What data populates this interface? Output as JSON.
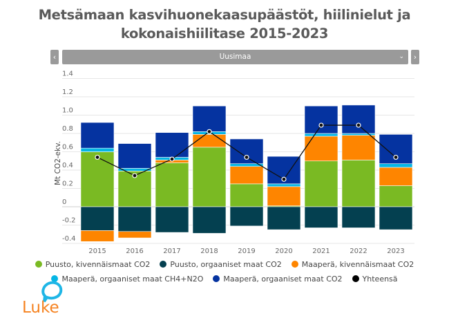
{
  "header": {
    "title_line1": "Metsämaan kasvihuonekaasupäästöt, hiilinielut ja",
    "title_line2": "kokonaishiilitase 2015-2023"
  },
  "selector": {
    "prev_label": "‹",
    "next_label": "›",
    "selected": "Uusimaa",
    "chevron": "⌄"
  },
  "logo": {
    "text": "Luke"
  },
  "colors": {
    "puusto_kiv": "#7aba23",
    "puusto_org": "#044050",
    "maapera_kiv": "#fe8500",
    "maapera_org_ch4": "#05b6e5",
    "maapera_org_co2": "#0533a0",
    "yhteensa": "#000000",
    "logo_orange": "#f58220",
    "logo_blue": "#1fb6e6"
  },
  "chart_data": {
    "type": "bar",
    "stacked": true,
    "title": "Metsämaan kasvihuonekaasupäästöt, hiilinielut ja kokonaishiilitase 2015-2023",
    "xlabel": "",
    "ylabel": "Mt CO2-ekv.",
    "ylim": [
      -0.4,
      1.4
    ],
    "yticks": [
      "-0.4",
      "-0.2",
      "0",
      "0.2",
      "0.4",
      "0.6",
      "0.8",
      "1.0",
      "1.2",
      "1.4"
    ],
    "ytick_values": [
      -0.4,
      -0.2,
      0,
      0.2,
      0.4,
      0.6,
      0.8,
      1.0,
      1.2,
      1.4
    ],
    "grid": true,
    "legend_position": "bottom",
    "categories": [
      "2015",
      "2016",
      "2017",
      "2018",
      "2019",
      "2020",
      "2021",
      "2022",
      "2023"
    ],
    "series": [
      {
        "name": "Puusto, kivennäismaat CO2",
        "key": "puusto_kiv",
        "values": [
          0.6,
          0.39,
          0.48,
          0.65,
          0.25,
          0.01,
          0.5,
          0.51,
          0.23
        ]
      },
      {
        "name": "Puusto, orgaaniset maat CO2",
        "key": "puusto_org",
        "values": [
          -0.26,
          -0.27,
          -0.28,
          -0.29,
          -0.21,
          -0.25,
          -0.23,
          -0.23,
          -0.25
        ]
      },
      {
        "name": "Maaperä, kivennäismaat CO2",
        "key": "maapera_kiv",
        "values": [
          -0.12,
          -0.07,
          0.03,
          0.14,
          0.19,
          0.21,
          0.27,
          0.27,
          0.2
        ]
      },
      {
        "name": "Maaperä, orgaaniset maat CH4+N2O",
        "key": "maapera_org_ch4",
        "values": [
          0.04,
          0.03,
          0.03,
          0.03,
          0.03,
          0.03,
          0.03,
          0.02,
          0.04
        ]
      },
      {
        "name": "Maaperä, orgaaniset maat CO2",
        "key": "maapera_org_co2",
        "values": [
          0.28,
          0.27,
          0.27,
          0.28,
          0.27,
          0.3,
          0.3,
          0.31,
          0.32
        ]
      }
    ],
    "line_series": {
      "name": "Yhteensä",
      "key": "yhteensa",
      "values": [
        0.54,
        0.34,
        0.52,
        0.82,
        0.54,
        0.3,
        0.89,
        0.89,
        0.54
      ]
    }
  }
}
